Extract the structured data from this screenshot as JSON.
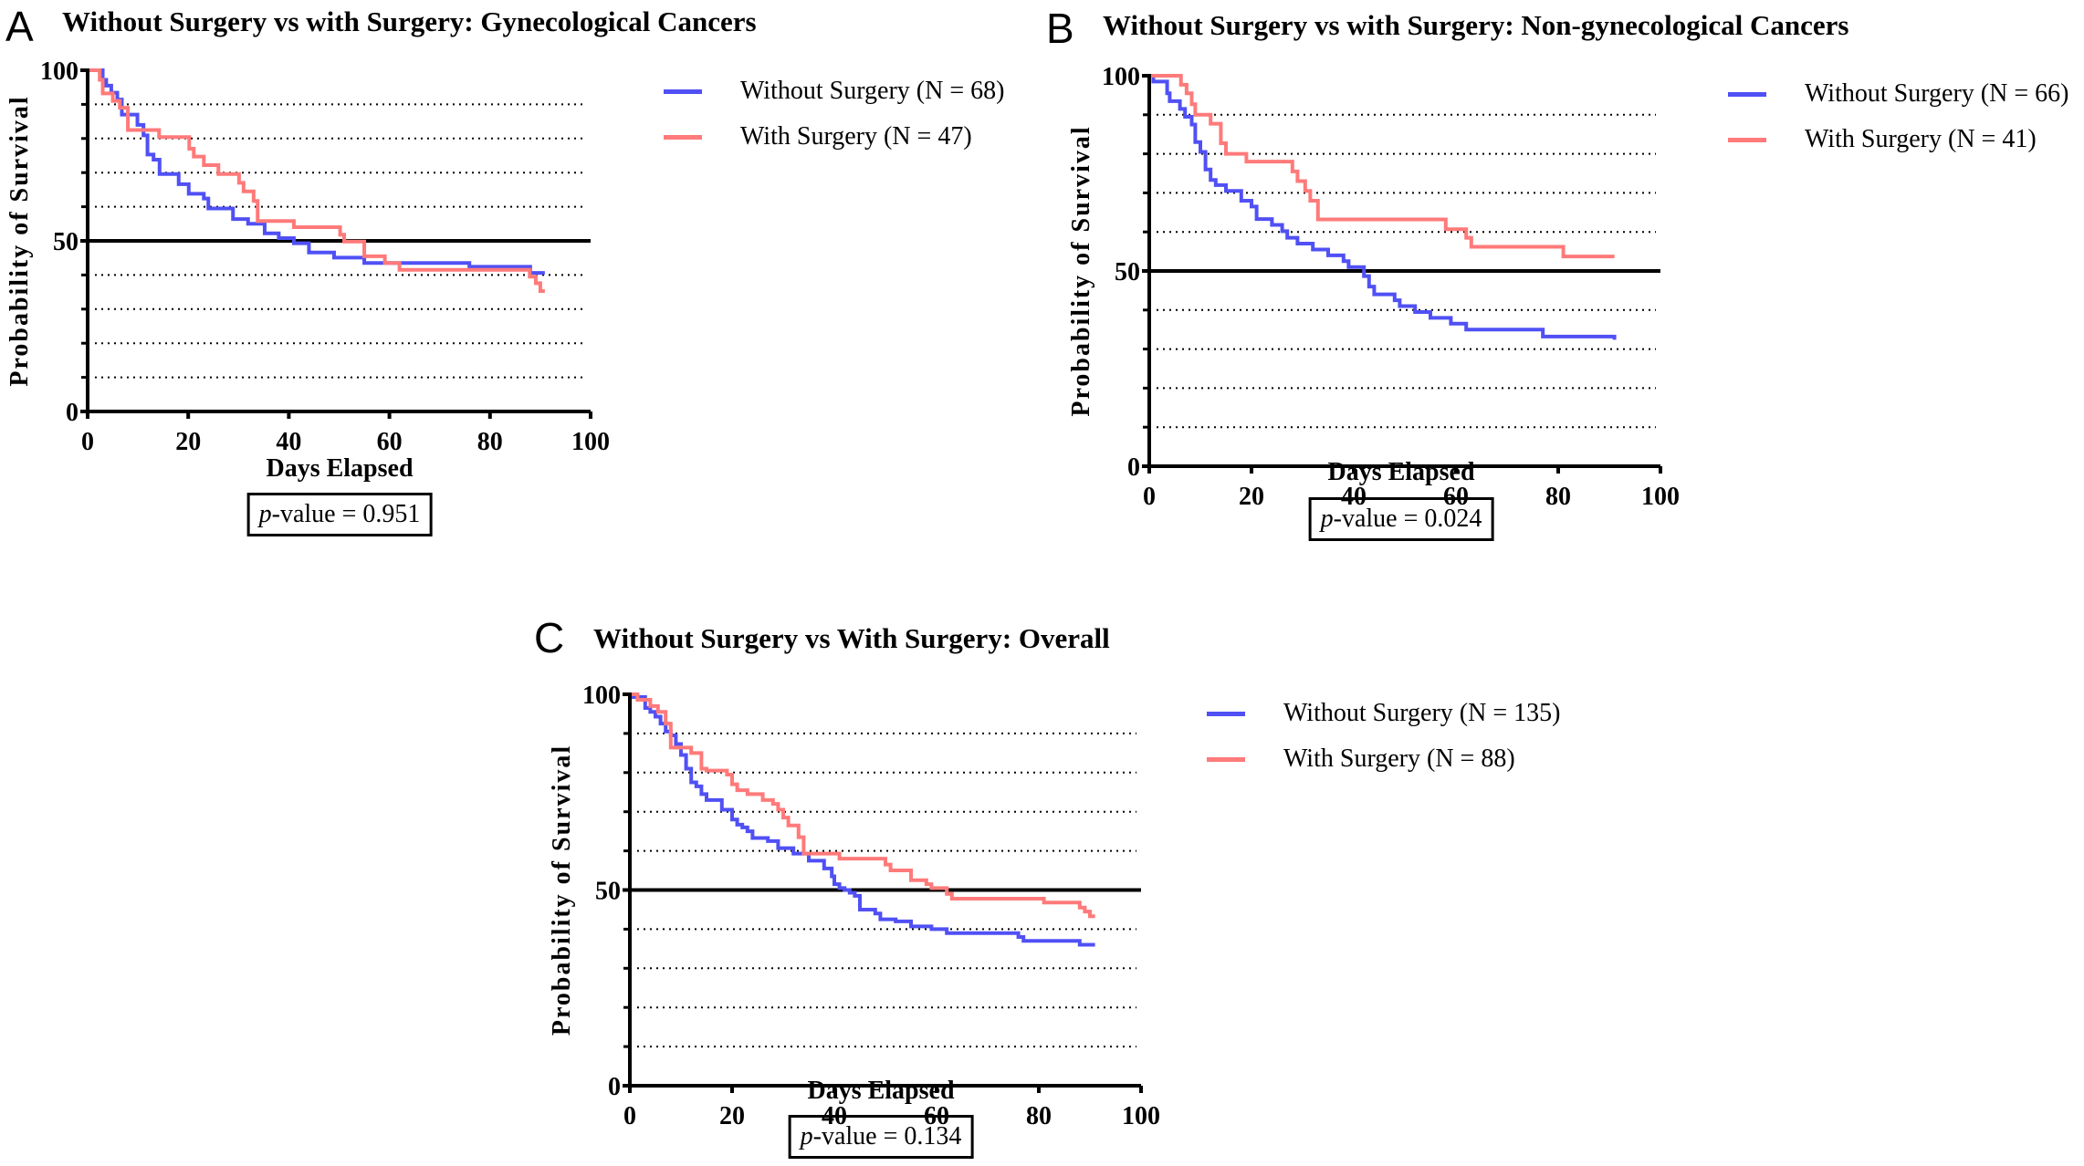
{
  "colors": {
    "without_surgery": "#5050f5",
    "with_surgery": "#ff7a7a",
    "median_line": "#000000",
    "grid": "#000000"
  },
  "chart_data": [
    {
      "panel": "A",
      "type": "line",
      "subtype": "kaplan-meier step",
      "title": "Without Surgery vs with Surgery: Gynecological Cancers",
      "xlabel": "Days Elapsed",
      "ylabel": "Probability of Survival",
      "xlim": [
        0,
        100
      ],
      "ylim": [
        0,
        100
      ],
      "xticks": [
        "0",
        "20",
        "40",
        "60",
        "80",
        "100"
      ],
      "yticks": [
        "0",
        "50",
        "100"
      ],
      "grid": "dotted horizontal every 10",
      "reference_line": 50,
      "legend_position": "right",
      "p_value_label": "-value = 0.951",
      "p_value_prefix": "p",
      "series": [
        {
          "name": "Without Surgery (N = 68)",
          "color_key": "without_surgery",
          "steps": [
            [
              0,
              100
            ],
            [
              3.0,
              97.2
            ],
            [
              3.7,
              95.5
            ],
            [
              4.7,
              93.4
            ],
            [
              5.9,
              91.4
            ],
            [
              6.8,
              87
            ],
            [
              9.9,
              84
            ],
            [
              11.1,
              80.9
            ],
            [
              11.9,
              75.3
            ],
            [
              13.1,
              73.8
            ],
            [
              14.3,
              69.6
            ],
            [
              18.1,
              66.6
            ],
            [
              20.1,
              63.8
            ],
            [
              23.1,
              62.4
            ],
            [
              24.0,
              59.5
            ],
            [
              28.9,
              56.4
            ],
            [
              31.9,
              55
            ],
            [
              35.2,
              52.2
            ],
            [
              38.0,
              50.8
            ],
            [
              41.0,
              49.3
            ],
            [
              44.0,
              46.6
            ],
            [
              49.0,
              45.1
            ],
            [
              55.0,
              43.5
            ],
            [
              75.9,
              42.4
            ],
            [
              88.0,
              40.6
            ]
          ],
          "end": 90.9
        },
        {
          "name": "With Surgery (N = 47)",
          "color_key": "with_surgery",
          "steps": [
            [
              0,
              100
            ],
            [
              2.4,
              97.2
            ],
            [
              3.0,
              93.2
            ],
            [
              5.0,
              91
            ],
            [
              6.4,
              89
            ],
            [
              8.0,
              82.5
            ],
            [
              14.2,
              80.4
            ],
            [
              20.2,
              77
            ],
            [
              21.1,
              74.7
            ],
            [
              23.1,
              72.2
            ],
            [
              26.0,
              69.6
            ],
            [
              30.1,
              67
            ],
            [
              31.0,
              64.5
            ],
            [
              33.0,
              61.7
            ],
            [
              33.8,
              55.8
            ],
            [
              41.0,
              54
            ],
            [
              50.2,
              51.8
            ],
            [
              51.0,
              49.8
            ],
            [
              55.0,
              45.5
            ],
            [
              59.1,
              43.5
            ],
            [
              62.0,
              41.5
            ],
            [
              87.9,
              39.5
            ],
            [
              89.1,
              37.6
            ],
            [
              90.0,
              35.3
            ]
          ],
          "end": 90.9
        }
      ]
    },
    {
      "panel": "B",
      "type": "line",
      "subtype": "kaplan-meier step",
      "title": "Without Surgery vs with Surgery: Non-gynecological Cancers",
      "xlabel": "Days Elapsed",
      "ylabel": "Probability of Survival",
      "xlim": [
        0,
        100
      ],
      "ylim": [
        0,
        100
      ],
      "xticks": [
        "0",
        "20",
        "40",
        "60",
        "80",
        "100"
      ],
      "yticks": [
        "0",
        "50",
        "100"
      ],
      "grid": "dotted horizontal every 10",
      "reference_line": 50,
      "legend_position": "right",
      "p_value_label": "-value = 0.024",
      "p_value_prefix": "p",
      "series": [
        {
          "name": "Without Surgery (N = 66)",
          "color_key": "without_surgery",
          "steps": [
            [
              0,
              100
            ],
            [
              0.8,
              98.5
            ],
            [
              3.5,
              95.5
            ],
            [
              4.0,
              93.5
            ],
            [
              6.0,
              91.5
            ],
            [
              7.0,
              89.5
            ],
            [
              8.3,
              87.5
            ],
            [
              9.0,
              83
            ],
            [
              10.0,
              80.5
            ],
            [
              11.0,
              76
            ],
            [
              12.0,
              73.3
            ],
            [
              13.0,
              72
            ],
            [
              15.0,
              70.5
            ],
            [
              18.0,
              68
            ],
            [
              20.0,
              66.5
            ],
            [
              21.0,
              63.3
            ],
            [
              24.0,
              61.8
            ],
            [
              26.0,
              60.2
            ],
            [
              27.0,
              58.5
            ],
            [
              29.0,
              57
            ],
            [
              32.0,
              55.5
            ],
            [
              35.0,
              54
            ],
            [
              38.0,
              52.5
            ],
            [
              39.0,
              51
            ],
            [
              42.0,
              48.7
            ],
            [
              43.0,
              46
            ],
            [
              44.0,
              44
            ],
            [
              48.0,
              42.5
            ],
            [
              49.0,
              41
            ],
            [
              52.0,
              39.5
            ],
            [
              55.0,
              38
            ],
            [
              59.0,
              36.5
            ],
            [
              62.0,
              35
            ],
            [
              77.0,
              33.2
            ],
            [
              91.0,
              32.4
            ]
          ],
          "end": 91
        },
        {
          "name": "With Surgery (N = 41)",
          "color_key": "with_surgery",
          "steps": [
            [
              0,
              100
            ],
            [
              6.2,
              97.7
            ],
            [
              7.3,
              95.5
            ],
            [
              8.3,
              92.7
            ],
            [
              9.0,
              90
            ],
            [
              12.0,
              87.7
            ],
            [
              14.0,
              82.7
            ],
            [
              15.0,
              80
            ],
            [
              19.0,
              78
            ],
            [
              28.0,
              75.5
            ],
            [
              29.0,
              73
            ],
            [
              30.5,
              70.5
            ],
            [
              31.5,
              68
            ],
            [
              33.0,
              63.2
            ],
            [
              58.0,
              60.7
            ],
            [
              62.0,
              58.5
            ],
            [
              63.0,
              56.2
            ],
            [
              81.0,
              53.7
            ]
          ],
          "end": 91
        }
      ]
    },
    {
      "panel": "C",
      "type": "line",
      "subtype": "kaplan-meier step",
      "title": "Without Surgery vs With Surgery: Overall",
      "xlabel": "Days Elapsed",
      "ylabel": "Probability of Survival",
      "xlim": [
        0,
        100
      ],
      "ylim": [
        0,
        100
      ],
      "xticks": [
        "0",
        "20",
        "40",
        "60",
        "80",
        "100"
      ],
      "yticks": [
        "0",
        "50",
        "100"
      ],
      "grid": "dotted horizontal every 10",
      "reference_line": 50,
      "legend_position": "right",
      "p_value_label": "-value = 0.134",
      "p_value_prefix": "p",
      "series": [
        {
          "name": "Without Surgery (N = 135)",
          "color_key": "without_surgery",
          "steps": [
            [
              0,
              100
            ],
            [
              0.5,
              99.3
            ],
            [
              3.0,
              96.5
            ],
            [
              4.0,
              95.5
            ],
            [
              5.0,
              94.3
            ],
            [
              6.0,
              92.5
            ],
            [
              7.0,
              90.5
            ],
            [
              8.0,
              89.5
            ],
            [
              9.0,
              87.3
            ],
            [
              10.0,
              84.5
            ],
            [
              11.0,
              81
            ],
            [
              12.0,
              77.5
            ],
            [
              13.0,
              76.5
            ],
            [
              14.0,
              74.5
            ],
            [
              15.0,
              73
            ],
            [
              18.0,
              70.5
            ],
            [
              20.0,
              68
            ],
            [
              21.0,
              66.7
            ],
            [
              22.0,
              66
            ],
            [
              23.0,
              65
            ],
            [
              24.0,
              63.3
            ],
            [
              27.0,
              62.5
            ],
            [
              29.0,
              60.7
            ],
            [
              32.0,
              59.3
            ],
            [
              35.0,
              57.5
            ],
            [
              38.0,
              55.5
            ],
            [
              39.5,
              53.5
            ],
            [
              40.0,
              51.5
            ],
            [
              41.0,
              50.5
            ],
            [
              42.0,
              50
            ],
            [
              43.0,
              49.3
            ],
            [
              44.0,
              48.5
            ],
            [
              45.0,
              45
            ],
            [
              48.0,
              44
            ],
            [
              49.0,
              42.5
            ],
            [
              52.0,
              42
            ],
            [
              55.0,
              40.7
            ],
            [
              59.0,
              40
            ],
            [
              62.0,
              39
            ],
            [
              76.0,
              38
            ],
            [
              77.0,
              37
            ],
            [
              88.0,
              36
            ]
          ],
          "end": 91
        },
        {
          "name": "With Surgery (N = 88)",
          "color_key": "with_surgery",
          "steps": [
            [
              0,
              100
            ],
            [
              1.5,
              98.6
            ],
            [
              4.0,
              97
            ],
            [
              5.5,
              95.5
            ],
            [
              7.0,
              92.5
            ],
            [
              8.0,
              86.4
            ],
            [
              12.0,
              85
            ],
            [
              14.0,
              81
            ],
            [
              15.0,
              80.5
            ],
            [
              19.0,
              79.5
            ],
            [
              20.0,
              77
            ],
            [
              21.0,
              75.5
            ],
            [
              23.0,
              74.5
            ],
            [
              26.0,
              73
            ],
            [
              28.0,
              72
            ],
            [
              29.0,
              70.5
            ],
            [
              30.0,
              68.5
            ],
            [
              31.0,
              66.5
            ],
            [
              33.0,
              63.5
            ],
            [
              34.0,
              59.3
            ],
            [
              41.0,
              58
            ],
            [
              50.0,
              56.5
            ],
            [
              51.0,
              55
            ],
            [
              55.0,
              52.5
            ],
            [
              58.0,
              51.5
            ],
            [
              59.0,
              50.5
            ],
            [
              62.0,
              49
            ],
            [
              63.0,
              47.8
            ],
            [
              81.0,
              46.8
            ],
            [
              88.0,
              45.5
            ],
            [
              89.0,
              44.5
            ],
            [
              90.0,
              43.3
            ]
          ],
          "end": 91
        }
      ]
    }
  ]
}
